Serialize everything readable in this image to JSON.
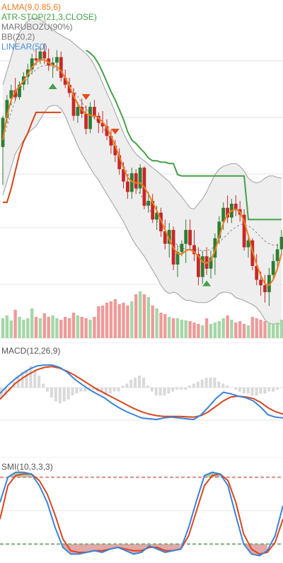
{
  "colors": {
    "up": "#2e7d32",
    "down": "#c62828",
    "alma": "#ef7d22",
    "atr_stop_up": "#43a047",
    "atr_stop_down": "#d84315",
    "bb": "#9e9e9e",
    "linear": "#4a90d9",
    "macd": "#3b83d6",
    "signal": "#d9461e",
    "smi": "#3b83d6",
    "smi_signal": "#d9461e"
  },
  "legend": {
    "alma": "ALMA(9,0.85,6)",
    "atr_stop": "ATR-STOP(21,3,CLOSE)",
    "marubozu": "MARUBOZU(90%)",
    "bb": "BB(20,2)",
    "linear": "LINEAR(50)",
    "macd": "MACD(12,26,9)",
    "smi": "SMI(10,3,3,3)"
  },
  "chart_data": [
    {
      "type": "candlestick",
      "title": "",
      "grid": true,
      "indicators": [
        "ALMA(9,0.85,6)",
        "ATR-STOP(21,3,CLOSE)",
        "MARUBOZU(90%)",
        "BB(20,2)",
        "LINEAR(50)"
      ],
      "markers": [
        {
          "index": 12,
          "direction": "up"
        },
        {
          "index": 20,
          "direction": "down"
        },
        {
          "index": 27,
          "direction": "down"
        },
        {
          "index": 49,
          "direction": "up"
        }
      ],
      "candles": [
        {
          "o": 50,
          "h": 95,
          "l": -5,
          "c": 92
        },
        {
          "o": 92,
          "h": 125,
          "l": 85,
          "c": 118
        },
        {
          "o": 120,
          "h": 140,
          "l": 110,
          "c": 132
        },
        {
          "o": 132,
          "h": 150,
          "l": 116,
          "c": 122
        },
        {
          "o": 122,
          "h": 145,
          "l": 118,
          "c": 140
        },
        {
          "o": 140,
          "h": 158,
          "l": 132,
          "c": 152
        },
        {
          "o": 152,
          "h": 170,
          "l": 140,
          "c": 162
        },
        {
          "o": 162,
          "h": 185,
          "l": 155,
          "c": 178
        },
        {
          "o": 178,
          "h": 192,
          "l": 168,
          "c": 175
        },
        {
          "o": 175,
          "h": 195,
          "l": 170,
          "c": 188
        },
        {
          "o": 188,
          "h": 200,
          "l": 170,
          "c": 178
        },
        {
          "o": 178,
          "h": 192,
          "l": 160,
          "c": 168
        },
        {
          "o": 168,
          "h": 180,
          "l": 150,
          "c": 172
        },
        {
          "o": 172,
          "h": 190,
          "l": 160,
          "c": 180
        },
        {
          "o": 180,
          "h": 188,
          "l": 145,
          "c": 150
        },
        {
          "o": 150,
          "h": 162,
          "l": 135,
          "c": 140
        },
        {
          "o": 140,
          "h": 150,
          "l": 122,
          "c": 128
        },
        {
          "o": 128,
          "h": 135,
          "l": 88,
          "c": 95
        },
        {
          "o": 95,
          "h": 115,
          "l": 85,
          "c": 108
        },
        {
          "o": 108,
          "h": 120,
          "l": 92,
          "c": 98
        },
        {
          "o": 98,
          "h": 110,
          "l": 68,
          "c": 76
        },
        {
          "o": 76,
          "h": 115,
          "l": 70,
          "c": 108
        },
        {
          "o": 108,
          "h": 118,
          "l": 90,
          "c": 95
        },
        {
          "o": 95,
          "h": 100,
          "l": 70,
          "c": 85
        },
        {
          "o": 85,
          "h": 102,
          "l": 70,
          "c": 80
        },
        {
          "o": 80,
          "h": 90,
          "l": 60,
          "c": 66
        },
        {
          "o": 66,
          "h": 75,
          "l": 40,
          "c": 52
        },
        {
          "o": 52,
          "h": 60,
          "l": 28,
          "c": 38
        },
        {
          "o": 38,
          "h": 48,
          "l": 10,
          "c": 18
        },
        {
          "o": 18,
          "h": 28,
          "l": -10,
          "c": 0
        },
        {
          "o": 0,
          "h": 10,
          "l": -25,
          "c": -15
        },
        {
          "o": -15,
          "h": 20,
          "l": -25,
          "c": 12
        },
        {
          "o": 12,
          "h": 18,
          "l": -18,
          "c": -10
        },
        {
          "o": -10,
          "h": 25,
          "l": -18,
          "c": 20
        },
        {
          "o": 20,
          "h": 22,
          "l": -40,
          "c": -35
        },
        {
          "o": -35,
          "h": -15,
          "l": -45,
          "c": -28
        },
        {
          "o": -28,
          "h": -18,
          "l": -60,
          "c": -55
        },
        {
          "o": -55,
          "h": -35,
          "l": -70,
          "c": -45
        },
        {
          "o": -45,
          "h": -38,
          "l": -80,
          "c": -72
        },
        {
          "o": -72,
          "h": -55,
          "l": -98,
          "c": -90
        },
        {
          "o": -90,
          "h": -60,
          "l": -110,
          "c": -70
        },
        {
          "o": -70,
          "h": -65,
          "l": -128,
          "c": -120
        },
        {
          "o": -120,
          "h": -92,
          "l": -138,
          "c": -102
        },
        {
          "o": -102,
          "h": -85,
          "l": -108,
          "c": -90
        },
        {
          "o": -90,
          "h": -55,
          "l": -118,
          "c": -70
        },
        {
          "o": -70,
          "h": -55,
          "l": -100,
          "c": -92
        },
        {
          "o": -92,
          "h": -70,
          "l": -115,
          "c": -105
        },
        {
          "o": -105,
          "h": -95,
          "l": -150,
          "c": -138
        },
        {
          "o": -138,
          "h": -100,
          "l": -148,
          "c": -108
        },
        {
          "o": -108,
          "h": -95,
          "l": -135,
          "c": -126
        },
        {
          "o": -126,
          "h": -100,
          "l": -140,
          "c": -110
        },
        {
          "o": -110,
          "h": -75,
          "l": -135,
          "c": -82
        },
        {
          "o": -82,
          "h": -50,
          "l": -90,
          "c": -58
        },
        {
          "o": -58,
          "h": -30,
          "l": -70,
          "c": -38
        },
        {
          "o": -38,
          "h": -20,
          "l": -60,
          "c": -52
        },
        {
          "o": -52,
          "h": -25,
          "l": -60,
          "c": -32
        },
        {
          "o": -32,
          "h": -20,
          "l": -50,
          "c": -40
        },
        {
          "o": -40,
          "h": -28,
          "l": -58,
          "c": -48
        },
        {
          "o": -48,
          "h": -40,
          "l": -100,
          "c": -95
        },
        {
          "o": -95,
          "h": -78,
          "l": -110,
          "c": -85
        },
        {
          "o": -85,
          "h": -82,
          "l": -128,
          "c": -122
        },
        {
          "o": -122,
          "h": -105,
          "l": -150,
          "c": -142
        },
        {
          "o": -142,
          "h": -130,
          "l": -165,
          "c": -150
        },
        {
          "o": -150,
          "h": -135,
          "l": -175,
          "c": -160
        },
        {
          "o": -160,
          "h": -125,
          "l": -180,
          "c": -135
        },
        {
          "o": -135,
          "h": -105,
          "l": -140,
          "c": -115
        },
        {
          "o": -115,
          "h": -90,
          "l": -125,
          "c": -98
        },
        {
          "o": -98,
          "h": -70,
          "l": -105,
          "c": -80
        }
      ],
      "alma": [
        60,
        95,
        118,
        130,
        138,
        146,
        155,
        165,
        172,
        176,
        176,
        172,
        168,
        166,
        160,
        150,
        138,
        124,
        112,
        104,
        98,
        96,
        95,
        92,
        86,
        78,
        66,
        52,
        36,
        20,
        6,
        0,
        -2,
        -2,
        -8,
        -18,
        -30,
        -42,
        -56,
        -70,
        -84,
        -96,
        -104,
        -105,
        -100,
        -98,
        -102,
        -108,
        -116,
        -118,
        -114,
        -100,
        -80,
        -60,
        -48,
        -42,
        -40,
        -44,
        -58,
        -78,
        -100,
        -120,
        -136,
        -148,
        -150,
        -142,
        -126,
        -104
      ],
      "atr_stop": {
        "up": [
          null,
          null,
          null,
          null,
          null,
          null,
          null,
          null,
          null,
          null,
          null,
          null,
          null,
          null,
          null,
          null,
          null,
          null,
          null,
          null,
          190,
          186,
          180,
          170,
          158,
          144,
          130,
          118,
          104,
          90,
          72,
          60,
          55,
          48,
          42,
          34,
          30,
          30,
          28,
          28,
          26,
          26,
          10,
          8,
          8,
          8,
          8,
          8,
          8,
          8,
          8,
          8,
          8,
          8,
          8,
          8,
          8,
          8,
          8,
          -55,
          -55,
          -55,
          -55,
          -55,
          -55,
          -55,
          -55,
          -55
        ],
        "down": [
          -30,
          -30,
          -10,
          15,
          40,
          58,
          70,
          86,
          100,
          100,
          100,
          100,
          100,
          100,
          100,
          null,
          null,
          null,
          null,
          null,
          null,
          null,
          null,
          null,
          null,
          null,
          null,
          null,
          null,
          null,
          null,
          null,
          null,
          null,
          null,
          null,
          null,
          null,
          null,
          null,
          null,
          null,
          null,
          null,
          null,
          null,
          null,
          null,
          null,
          null,
          null,
          null,
          null,
          null,
          null,
          null,
          null,
          null,
          null,
          null,
          null,
          null,
          null,
          null,
          null,
          null,
          null,
          null
        ]
      },
      "bb": {
        "upper": [
          140,
          160,
          180,
          200,
          215,
          225,
          232,
          236,
          236,
          234,
          230,
          225,
          220,
          215,
          212,
          208,
          205,
          200,
          195,
          190,
          185,
          178,
          168,
          156,
          142,
          128,
          115,
          100,
          85,
          70,
          58,
          48,
          40,
          34,
          30,
          25,
          20,
          15,
          10,
          5,
          0,
          -8,
          -15,
          -22,
          -30,
          -38,
          -40,
          -32,
          -25,
          -15,
          -2,
          10,
          18,
          22,
          24,
          26,
          26,
          22,
          15,
          5,
          0,
          -2,
          0,
          5,
          8,
          8,
          6,
          5
        ],
        "middle": [
          60,
          80,
          100,
          118,
          132,
          142,
          150,
          157,
          162,
          166,
          168,
          168,
          166,
          162,
          156,
          150,
          142,
          133,
          123,
          114,
          106,
          98,
          92,
          86,
          78,
          70,
          60,
          48,
          36,
          24,
          12,
          2,
          -8,
          -18,
          -28,
          -38,
          -48,
          -56,
          -64,
          -72,
          -80,
          -86,
          -92,
          -96,
          -98,
          -98,
          -98,
          -99,
          -100,
          -100,
          -98,
          -94,
          -88,
          -82,
          -76,
          -70,
          -66,
          -62,
          -62,
          -64,
          -68,
          -74,
          -80,
          -86,
          -90,
          -92,
          -92,
          -92
        ],
        "lower": [
          -20,
          0,
          20,
          40,
          50,
          60,
          70,
          75,
          80,
          90,
          100,
          108,
          110,
          110,
          105,
          95,
          80,
          66,
          52,
          40,
          30,
          20,
          10,
          2,
          -8,
          -18,
          -28,
          -38,
          -48,
          -58,
          -70,
          -82,
          -92,
          -100,
          -108,
          -118,
          -128,
          -138,
          -150,
          -158,
          -162,
          -160,
          -162,
          -168,
          -172,
          -172,
          -174,
          -175,
          -175,
          -175,
          -172,
          -168,
          -162,
          -160,
          -160,
          -162,
          -168,
          -170,
          -172,
          -175,
          -178,
          -182,
          -190,
          -200,
          -205,
          -206,
          -206,
          -206
        ]
      },
      "volume": [
        28,
        32,
        25,
        40,
        30,
        26,
        28,
        42,
        30,
        28,
        35,
        30,
        32,
        28,
        26,
        30,
        28,
        36,
        32,
        30,
        28,
        26,
        30,
        45,
        46,
        50,
        52,
        55,
        48,
        50,
        46,
        52,
        62,
        66,
        62,
        58,
        46,
        42,
        36,
        34,
        30,
        28,
        28,
        26,
        25,
        24,
        22,
        20,
        18,
        28,
        20,
        22,
        24,
        28,
        32,
        26,
        22,
        24,
        20,
        18,
        30,
        28,
        26,
        24,
        22,
        20,
        22,
        26
      ]
    },
    {
      "type": "line",
      "title": "MACD(12,26,9)",
      "series": [
        {
          "name": "MACD",
          "values": [
            -15,
            5,
            22,
            36,
            48,
            56,
            58,
            58,
            52,
            40,
            22,
            8,
            -5,
            -16,
            -26,
            -40,
            -52,
            -62,
            -70,
            -78,
            -80,
            -82,
            -78,
            -76,
            -78,
            -80,
            -82,
            -70,
            -50,
            -28,
            -12,
            -16,
            -22,
            -26,
            -34,
            -50,
            -70,
            -76,
            -78
          ]
        },
        {
          "name": "Signal",
          "values": [
            -30,
            -10,
            10,
            24,
            36,
            46,
            52,
            54,
            50,
            42,
            32,
            20,
            8,
            -4,
            -14,
            -24,
            -34,
            -44,
            -54,
            -62,
            -68,
            -72,
            -74,
            -74,
            -74,
            -75,
            -76,
            -72,
            -62,
            -48,
            -34,
            -24,
            -22,
            -24,
            -28,
            -38,
            -52,
            -62,
            -68
          ]
        },
        {
          "name": "Histogram",
          "values": [
            -10,
            -8,
            -4,
            6,
            12,
            16,
            18,
            22,
            18,
            12,
            4,
            -4,
            -10,
            -14,
            -16,
            -14,
            -12,
            -8,
            -6,
            -4,
            -4,
            -2,
            -2,
            -4,
            -4,
            -6,
            -6,
            -4,
            -4,
            2,
            4,
            8,
            10,
            12,
            10,
            2,
            -4,
            -8,
            -8,
            -8,
            -6,
            -4,
            -2,
            -2,
            -2,
            2,
            4,
            6,
            8,
            10,
            10,
            10,
            6,
            4,
            2,
            0,
            -2,
            -4,
            -6,
            -6,
            -8,
            -8,
            -6,
            -6,
            -4,
            -4,
            -2,
            0
          ]
        }
      ]
    },
    {
      "type": "line",
      "title": "SMI(10,3,3,3)",
      "reference_levels": [
        40,
        -40
      ],
      "series": [
        {
          "name": "SMI",
          "values": [
            10,
            40,
            46,
            46,
            44,
            30,
            10,
            -20,
            -44,
            -52,
            -52,
            -50,
            -48,
            -50,
            -46,
            -44,
            -48,
            -52,
            -50,
            -42,
            -46,
            -50,
            -48,
            -46,
            -20,
            12,
            42,
            46,
            44,
            30,
            -6,
            -40,
            -52,
            -54,
            -48,
            -30,
            6
          ]
        },
        {
          "name": "Signal",
          "values": [
            -10,
            30,
            42,
            44,
            44,
            36,
            20,
            -5,
            -34,
            -48,
            -50,
            -50,
            -48,
            -48,
            -46,
            -44,
            -46,
            -48,
            -48,
            -44,
            -44,
            -48,
            -48,
            -46,
            -30,
            0,
            30,
            42,
            44,
            36,
            10,
            -28,
            -46,
            -52,
            -50,
            -38,
            -10
          ]
        }
      ]
    }
  ]
}
